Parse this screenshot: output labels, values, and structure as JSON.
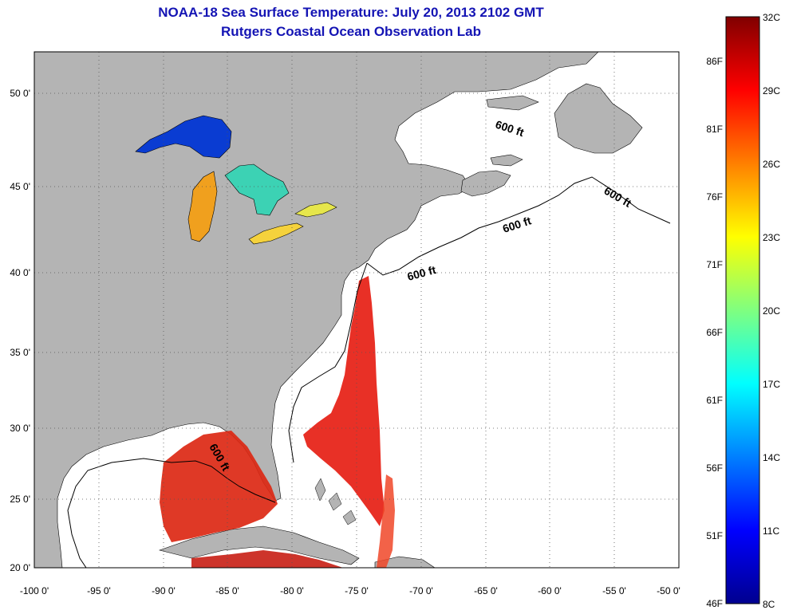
{
  "header": {
    "title": "NOAA-18 Sea Surface Temperature:  July 20, 2013 2102 GMT",
    "subtitle": "Rutgers Coastal Ocean Observation Lab"
  },
  "map": {
    "lon_ticks": [
      "-100 0'",
      "-95 0'",
      "-90 0'",
      "-85 0'",
      "-80 0'",
      "-75 0'",
      "-70 0'",
      "-65 0'",
      "-60 0'",
      "-55 0'",
      "-50 0'"
    ],
    "lat_ticks": [
      "50 0'",
      "45 0'",
      "40 0'",
      "35 0'",
      "30 0'",
      "25 0'",
      "20 0'"
    ],
    "contour_label": "600 ft",
    "land_color": "#b4b4b4",
    "grid": "dotted"
  },
  "colorbar": {
    "celsius": [
      "32C",
      "29C",
      "26C",
      "23C",
      "20C",
      "17C",
      "14C",
      "11C",
      "8C"
    ],
    "fahrenheit": [
      "86F",
      "81F",
      "76F",
      "71F",
      "66F",
      "61F",
      "56F",
      "51F",
      "46F"
    ],
    "colormap": "jet",
    "range_c": [
      8,
      32
    ]
  }
}
